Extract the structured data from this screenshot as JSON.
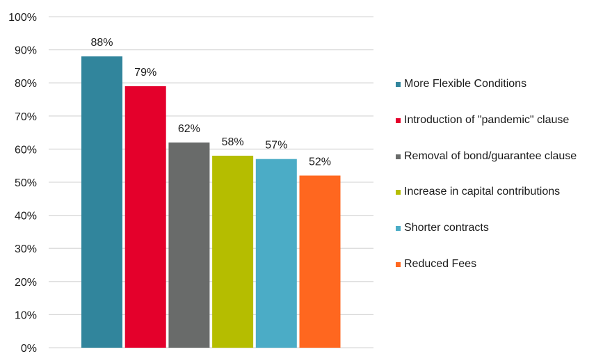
{
  "chart_data": {
    "type": "bar",
    "ylim": [
      0,
      100
    ],
    "ytick_step": 10,
    "ytick_suffix": "%",
    "grid": true,
    "legend_position": "right",
    "series": [
      {
        "name": "More Flexible Conditions",
        "value": 88,
        "label": "88%",
        "color": "#31859C"
      },
      {
        "name": "Introduction of \"pandemic\" clause",
        "value": 79,
        "label": "79%",
        "color": "#E4002B"
      },
      {
        "name": "Removal of bond/guarantee clause",
        "value": 62,
        "label": "62%",
        "color": "#696B6A"
      },
      {
        "name": "Increase in capital contributions",
        "value": 58,
        "label": "58%",
        "color": "#B5BD00"
      },
      {
        "name": "Shorter contracts",
        "value": 57,
        "label": "57%",
        "color": "#4BACC6"
      },
      {
        "name": "Reduced Fees",
        "value": 52,
        "label": "52%",
        "color": "#FF671F"
      }
    ]
  }
}
